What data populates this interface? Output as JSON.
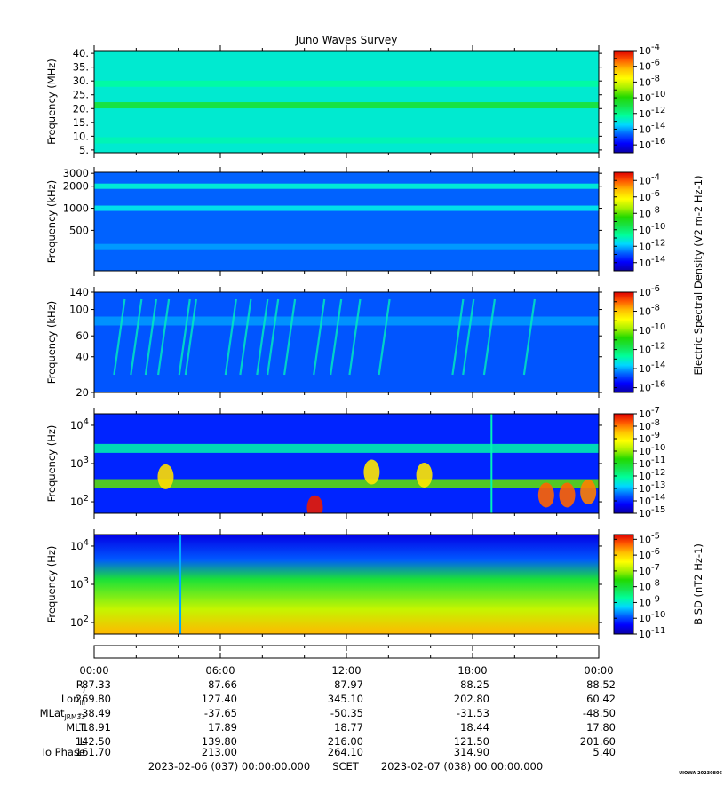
{
  "chart_data": [
    {
      "type": "heatmap",
      "title": "Juno Waves Survey",
      "ylabel": "Frequency (MHz)",
      "ylim": [
        4.0,
        41.0
      ],
      "yscale": "linear",
      "yticks": [
        "40.",
        "35.",
        "30.",
        "25.",
        "20.",
        "15.",
        "10.",
        "5."
      ],
      "colorbar_ticks": [
        "10^-4",
        "10^-6",
        "10^-8",
        "10^-10",
        "10^-12",
        "10^-14",
        "10^-16"
      ],
      "colorbar_range": [
        -17,
        -4
      ],
      "features": [
        {
          "freq": 21.2,
          "level": -11,
          "kind": "band"
        },
        {
          "freq": 29.0,
          "level": -12.4,
          "kind": "band"
        },
        {
          "freq": 8.5,
          "level": -12.6,
          "kind": "band"
        }
      ],
      "background_level": -12.9
    },
    {
      "type": "heatmap",
      "ylabel": "Frequency (kHz)",
      "ylim": [
        140,
        3100
      ],
      "yscale": "log",
      "yticks": [
        "3000",
        "2000",
        "1000",
        "500"
      ],
      "colorbar_ticks": [
        "10^-4",
        "10^-6",
        "10^-8",
        "10^-10",
        "10^-12",
        "10^-14"
      ],
      "colorbar_range": [
        -15,
        -3
      ],
      "colorbar_label": "Electric Spectral Density (V^2 m^-2 Hz^-1)",
      "features": [
        {
          "freq": 2000,
          "level": -11.3,
          "kind": "band"
        },
        {
          "freq": 1000,
          "level": -11.5,
          "kind": "band"
        },
        {
          "freq": 300,
          "level": -12.3,
          "kind": "band"
        }
      ],
      "background_level": -12.8
    },
    {
      "type": "heatmap",
      "ylabel": "Frequency (kHz)",
      "ylim": [
        20,
        140
      ],
      "yscale": "log",
      "yticks": [
        "140",
        "100",
        "60",
        "40",
        "20"
      ],
      "colorbar_ticks": [
        "10^-6",
        "10^-8",
        "10^-10",
        "10^-12",
        "10^-14",
        "10^-16"
      ],
      "colorbar_range": [
        -16.5,
        -6
      ],
      "features": [
        {
          "freq": 80,
          "level": -14.2,
          "kind": "band"
        },
        {
          "kind": "bursts",
          "level": -13.0,
          "times_hours": [
            1.2,
            2.0,
            2.7,
            3.3,
            4.3,
            4.6,
            6.5,
            7.2,
            8.0,
            8.5,
            9.3,
            10.7,
            11.5,
            12.4,
            13.8,
            17.3,
            17.8,
            18.8,
            20.7
          ]
        }
      ],
      "background_level": -14.7
    },
    {
      "type": "heatmap",
      "ylabel": "Frequency (Hz)",
      "ylim": [
        50,
        20000
      ],
      "yscale": "log",
      "yticks": [
        "10^4",
        "10^3",
        "10^2"
      ],
      "colorbar_ticks": [
        "10^-7",
        "10^-8",
        "10^-9",
        "10^-10",
        "10^-11",
        "10^-12",
        "10^-13",
        "10^-14",
        "10^-15"
      ],
      "colorbar_range": [
        -15,
        -7
      ],
      "features": [
        {
          "kind": "band",
          "freq": 2500,
          "level": -12.2
        },
        {
          "kind": "band",
          "freq": 300,
          "level": -10.3
        },
        {
          "kind": "spot",
          "time_hours": 3.4,
          "freq": 450,
          "level": -8.8
        },
        {
          "kind": "spot",
          "time_hours": 10.5,
          "freq": 70,
          "level": -7.2
        },
        {
          "kind": "spot",
          "time_hours": 13.2,
          "freq": 600,
          "level": -8.9
        },
        {
          "kind": "spot",
          "time_hours": 15.7,
          "freq": 500,
          "level": -8.9
        },
        {
          "kind": "spot",
          "time_hours": 21.5,
          "freq": 150,
          "level": -7.8
        },
        {
          "kind": "spot",
          "time_hours": 22.5,
          "freq": 150,
          "level": -7.8
        },
        {
          "kind": "spot",
          "time_hours": 23.5,
          "freq": 180,
          "level": -8.0
        },
        {
          "kind": "spike",
          "time_hours": 18.9,
          "level": -12.3
        }
      ],
      "background_level": -14.0
    },
    {
      "type": "heatmap",
      "ylabel": "Frequency (Hz)",
      "ylim": [
        50,
        20000
      ],
      "yscale": "log",
      "yticks": [
        "10^4",
        "10^3",
        "10^2"
      ],
      "colorbar_ticks": [
        "10^-5",
        "10^-6",
        "10^-7",
        "10^-8",
        "10^-9",
        "10^-10",
        "10^-11"
      ],
      "colorbar_range": [
        -11,
        -4.7
      ],
      "colorbar_label": "B SD (nT^2 Hz^-1)",
      "features": [
        {
          "kind": "gradient_low",
          "freq": 60,
          "level": -5.8
        },
        {
          "kind": "gradient_high",
          "freq": 15000,
          "level": -10.6
        },
        {
          "kind": "spike",
          "time_hours": 4.1,
          "level": -9.5
        }
      ],
      "background_level": -8.0
    }
  ],
  "xaxis": {
    "tick_labels": [
      "00:00",
      "06:00",
      "12:00",
      "18:00",
      "00:00"
    ],
    "xlim_hours": [
      0,
      24
    ]
  },
  "ephemeris": {
    "labels": [
      "R_J",
      "Lon_III",
      "MLat_JRM33",
      "MLT",
      "L",
      "Io Phase"
    ],
    "rows": [
      [
        "87.33",
        "87.66",
        "87.97",
        "88.25",
        "88.52"
      ],
      [
        "269.80",
        "127.40",
        "345.10",
        "202.80",
        "60.42"
      ],
      [
        "-38.49",
        "-37.65",
        "-50.35",
        "-31.53",
        "-48.50"
      ],
      [
        "18.91",
        "17.89",
        "18.77",
        "18.44",
        "17.80"
      ],
      [
        "142.50",
        "139.80",
        "216.00",
        "121.50",
        "201.60"
      ],
      [
        "161.70",
        "213.00",
        "264.10",
        "314.90",
        "5.40"
      ]
    ]
  },
  "footer": {
    "start": "2023-02-06 (037) 00:00:00.000",
    "scet": "SCET",
    "end": "2023-02-07 (038) 00:00:00.000"
  },
  "stamp": "UIOWA 20230806",
  "colors": {
    "colormap": [
      "#0a00a8",
      "#0000ff",
      "#0060ff",
      "#00d8ff",
      "#00ff9a",
      "#17e34a",
      "#22d900",
      "#a8f000",
      "#ffff00",
      "#ffc000",
      "#ff5a00",
      "#e00000"
    ]
  }
}
